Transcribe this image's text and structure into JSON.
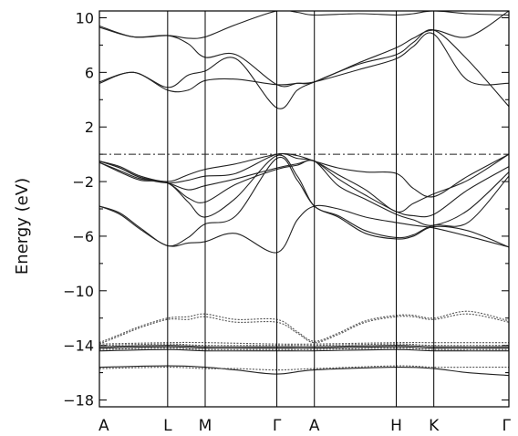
{
  "chart_data": {
    "type": "line",
    "title": "",
    "ylabel": "Energy (eV)",
    "xlabel": "",
    "ylim": [
      -18.5,
      10.5
    ],
    "yticks": [
      {
        "value": 10,
        "label": "10"
      },
      {
        "value": 6,
        "label": "6"
      },
      {
        "value": 2,
        "label": "2"
      },
      {
        "value": -2,
        "label": "−2"
      },
      {
        "value": -6,
        "label": "−6"
      },
      {
        "value": -10,
        "label": "−10"
      },
      {
        "value": -14,
        "label": "−14"
      },
      {
        "value": -18,
        "label": "−18"
      }
    ],
    "k_points": [
      {
        "label": "A",
        "pos": 0
      },
      {
        "label": "L",
        "pos": 1.0
      },
      {
        "label": "M",
        "pos": 1.55
      },
      {
        "label": "Γ",
        "pos": 2.6
      },
      {
        "label": "A",
        "pos": 3.15
      },
      {
        "label": "H",
        "pos": 4.35
      },
      {
        "label": "K",
        "pos": 4.9
      },
      {
        "label": "Γ",
        "pos": 6.0
      }
    ],
    "fermi_level": 0,
    "grid": false,
    "series": [
      {
        "style": "solid",
        "x": [
          0,
          0.5,
          1.0,
          1.3,
          1.55,
          2.0,
          2.6,
          2.9,
          3.15,
          3.8,
          4.35,
          4.6,
          4.9,
          5.4,
          6.0
        ],
        "y": [
          9.4,
          8.6,
          8.7,
          8.5,
          8.6,
          9.5,
          10.5,
          10.4,
          10.2,
          10.3,
          10.2,
          10.3,
          10.5,
          10.3,
          10.2
        ]
      },
      {
        "style": "solid",
        "x": [
          0,
          0.5,
          1.0,
          1.3,
          1.55,
          2.0,
          2.6,
          2.9,
          3.15,
          3.8,
          4.35,
          4.6,
          4.9,
          5.4,
          6.0
        ],
        "y": [
          9.3,
          8.6,
          8.7,
          8.1,
          7.1,
          7.3,
          5.1,
          5.2,
          5.3,
          6.7,
          7.8,
          8.5,
          9.1,
          8.6,
          10.5
        ]
      },
      {
        "style": "solid",
        "x": [
          0,
          0.5,
          1.0,
          1.3,
          1.55,
          2.0,
          2.6,
          2.9,
          3.15,
          3.8,
          4.35,
          4.6,
          4.9,
          5.4,
          6.0
        ],
        "y": [
          5.3,
          6.0,
          4.9,
          5.8,
          6.1,
          7.0,
          3.4,
          4.7,
          5.3,
          6.6,
          7.3,
          8.2,
          9.1,
          6.9,
          3.5
        ]
      },
      {
        "style": "solid",
        "x": [
          0,
          0.5,
          1.0,
          1.3,
          1.55,
          2.0,
          2.6,
          2.9,
          3.15,
          3.8,
          4.35,
          4.6,
          4.9,
          5.4,
          6.0
        ],
        "y": [
          5.2,
          6.0,
          4.7,
          4.7,
          5.4,
          5.5,
          5.1,
          5.2,
          5.3,
          6.2,
          7.0,
          7.9,
          8.8,
          5.4,
          5.2
        ]
      },
      {
        "style": "solid",
        "x": [
          0,
          0.3,
          0.6,
          1.0,
          1.3,
          1.55,
          2.0,
          2.6,
          2.9,
          3.15,
          3.5,
          3.9,
          4.35,
          4.6,
          4.9,
          5.4,
          6.0
        ],
        "y": [
          -0.5,
          -0.9,
          -1.6,
          -2.0,
          -1.5,
          -1.1,
          -0.7,
          0.0,
          -0.1,
          -0.5,
          -1.0,
          -1.3,
          -1.4,
          -2.5,
          -3.1,
          -1.6,
          0.0
        ]
      },
      {
        "style": "solid",
        "x": [
          0,
          0.3,
          0.6,
          1.0,
          1.3,
          1.55,
          2.0,
          2.6,
          2.9,
          3.15,
          3.5,
          3.9,
          4.35,
          4.6,
          4.9,
          5.4,
          6.0
        ],
        "y": [
          -0.5,
          -1.0,
          -1.7,
          -2.1,
          -1.9,
          -1.6,
          -1.4,
          0.0,
          -0.3,
          -0.5,
          -1.5,
          -2.6,
          -4.2,
          -3.6,
          -2.9,
          -1.9,
          0.0
        ]
      },
      {
        "style": "solid",
        "x": [
          0,
          0.3,
          0.6,
          1.0,
          1.3,
          1.55,
          2.0,
          2.6,
          2.9,
          3.15,
          3.5,
          3.9,
          4.35,
          4.6,
          4.9,
          5.4,
          6.0
        ],
        "y": [
          -0.5,
          -1.0,
          -1.7,
          -2.1,
          -2.6,
          -2.3,
          -1.8,
          -1.0,
          -0.7,
          -0.5,
          -1.8,
          -3.0,
          -4.2,
          -4.5,
          -4.4,
          -2.6,
          -0.9
        ]
      },
      {
        "style": "solid",
        "x": [
          0,
          0.3,
          0.6,
          1.0,
          1.3,
          1.55,
          2.0,
          2.6,
          2.9,
          3.15,
          3.5,
          3.9,
          4.35,
          4.6,
          4.9,
          5.4,
          6.0
        ],
        "y": [
          -0.6,
          -1.2,
          -1.8,
          -2.1,
          -3.2,
          -3.5,
          -2.2,
          -1.1,
          -0.8,
          -0.5,
          -2.3,
          -3.3,
          -4.4,
          -4.8,
          -5.2,
          -4.1,
          -1.3
        ]
      },
      {
        "style": "solid",
        "x": [
          0,
          0.3,
          0.6,
          1.0,
          1.3,
          1.55,
          2.0,
          2.6,
          2.9,
          3.15,
          3.5,
          3.9,
          4.35,
          4.6,
          4.9,
          5.4,
          6.0
        ],
        "y": [
          -0.6,
          -1.3,
          -1.9,
          -2.1,
          -3.5,
          -4.6,
          -3.2,
          -0.1,
          -1.6,
          -3.8,
          -4.5,
          -5.6,
          -6.1,
          -5.9,
          -5.2,
          -5.0,
          -1.6
        ]
      },
      {
        "style": "solid",
        "x": [
          0,
          0.3,
          0.6,
          1.0,
          1.3,
          1.55,
          2.0,
          2.6,
          2.9,
          3.15,
          3.5,
          3.9,
          4.35,
          4.6,
          4.9,
          5.4,
          6.0
        ],
        "y": [
          -3.8,
          -4.3,
          -5.4,
          -6.7,
          -6.1,
          -5.1,
          -4.5,
          -0.3,
          -1.9,
          -3.8,
          -4.6,
          -5.8,
          -6.2,
          -6.0,
          -5.3,
          -5.6,
          -6.8
        ]
      },
      {
        "style": "solid",
        "x": [
          0,
          0.3,
          0.6,
          1.0,
          1.3,
          1.55,
          2.0,
          2.6,
          2.9,
          3.15,
          3.5,
          3.9,
          4.35,
          4.6,
          4.9,
          5.4,
          6.0
        ],
        "y": [
          -3.8,
          -4.4,
          -5.5,
          -6.7,
          -6.5,
          -6.4,
          -5.8,
          -7.2,
          -4.8,
          -3.8,
          -4.0,
          -4.6,
          -5.0,
          -5.2,
          -5.4,
          -6.0,
          -6.8
        ]
      },
      {
        "style": "dotted",
        "x": [
          0,
          0.3,
          0.6,
          1.0,
          1.3,
          1.55,
          2.0,
          2.6,
          2.9,
          3.15,
          3.5,
          3.9,
          4.35,
          4.6,
          4.9,
          5.4,
          6.0
        ],
        "y": [
          -13.8,
          -13.2,
          -12.6,
          -12.0,
          -11.9,
          -11.7,
          -12.1,
          -12.1,
          -13.0,
          -13.7,
          -13.1,
          -12.2,
          -11.8,
          -11.8,
          -12.0,
          -11.5,
          -12.2
        ]
      },
      {
        "style": "dotted",
        "x": [
          0,
          0.3,
          0.6,
          1.0,
          1.3,
          1.55,
          2.0,
          2.6,
          2.9,
          3.15,
          3.5,
          3.9,
          4.35,
          4.6,
          4.9,
          5.4,
          6.0
        ],
        "y": [
          -13.9,
          -13.3,
          -12.7,
          -12.1,
          -12.1,
          -11.9,
          -12.3,
          -12.3,
          -13.1,
          -13.8,
          -13.2,
          -12.3,
          -11.9,
          -11.9,
          -12.1,
          -11.7,
          -12.3
        ]
      },
      {
        "style": "dotted",
        "x": [
          0,
          1.0,
          1.55,
          2.6,
          3.15,
          4.35,
          4.9,
          6.0
        ],
        "y": [
          -13.9,
          -13.8,
          -13.8,
          -13.9,
          -13.9,
          -13.8,
          -13.8,
          -13.8
        ]
      },
      {
        "style": "dotted",
        "x": [
          0,
          1.0,
          1.55,
          2.6,
          3.15,
          4.35,
          4.9,
          6.0
        ],
        "y": [
          -14.0,
          -13.9,
          -14.0,
          -14.0,
          -14.0,
          -13.9,
          -14.0,
          -14.0
        ]
      },
      {
        "style": "solid",
        "x": [
          0,
          1.0,
          1.55,
          2.6,
          3.15,
          4.35,
          4.9,
          6.0
        ],
        "y": [
          -14.1,
          -14.0,
          -14.1,
          -14.1,
          -14.1,
          -14.0,
          -14.1,
          -14.1
        ]
      },
      {
        "style": "solid",
        "x": [
          0,
          1.0,
          1.55,
          2.6,
          3.15,
          4.35,
          4.9,
          6.0
        ],
        "y": [
          -14.2,
          -14.1,
          -14.2,
          -14.2,
          -14.2,
          -14.1,
          -14.2,
          -14.2
        ]
      },
      {
        "style": "dotted",
        "x": [
          0,
          1.0,
          1.55,
          2.6,
          3.15,
          4.35,
          4.9,
          6.0
        ],
        "y": [
          -14.3,
          -14.2,
          -14.3,
          -14.3,
          -14.3,
          -14.2,
          -14.3,
          -14.3
        ]
      },
      {
        "style": "solid",
        "x": [
          0,
          1.0,
          1.55,
          2.6,
          3.15,
          4.35,
          4.9,
          6.0
        ],
        "y": [
          -14.4,
          -14.3,
          -14.4,
          -14.4,
          -14.4,
          -14.3,
          -14.4,
          -14.4
        ]
      },
      {
        "style": "solid",
        "x": [
          0,
          1.0,
          1.55,
          2.0,
          2.6,
          3.15,
          4.35,
          4.9,
          5.4,
          6.0
        ],
        "y": [
          -15.6,
          -15.5,
          -15.6,
          -15.8,
          -16.1,
          -15.8,
          -15.6,
          -15.7,
          -16.0,
          -16.2
        ]
      },
      {
        "style": "dotted",
        "x": [
          0,
          1.0,
          1.55,
          2.0,
          2.6,
          3.15,
          4.35,
          4.9,
          5.4,
          6.0
        ],
        "y": [
          -15.7,
          -15.6,
          -15.7,
          -15.7,
          -15.8,
          -15.7,
          -15.5,
          -15.6,
          -15.6,
          -15.6
        ]
      }
    ]
  }
}
